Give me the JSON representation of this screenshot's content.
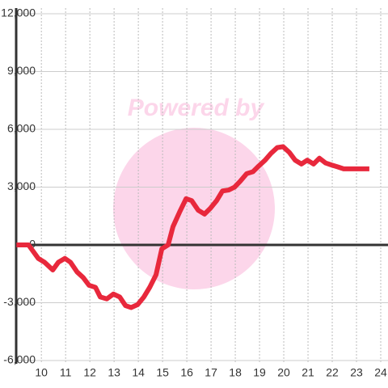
{
  "chart_data": {
    "type": "line",
    "watermark": "Powered by",
    "x": [
      8.97,
      9.47,
      9.87,
      10.13,
      10.47,
      10.7,
      10.97,
      11.2,
      11.47,
      11.73,
      11.97,
      12.23,
      12.43,
      12.7,
      12.97,
      13.23,
      13.47,
      13.7,
      13.97,
      14.23,
      14.47,
      14.73,
      14.97,
      15.23,
      15.43,
      15.7,
      15.97,
      16.2,
      16.47,
      16.73,
      16.97,
      17.23,
      17.47,
      17.73,
      17.97,
      18.2,
      18.47,
      18.73,
      18.97,
      19.23,
      19.47,
      19.73,
      19.97,
      20.23,
      20.47,
      20.73,
      20.97,
      21.23,
      21.47,
      21.73,
      21.97,
      22.23,
      22.47,
      22.73,
      23.53
    ],
    "series": [
      {
        "color": "#e8283c",
        "values": [
          0,
          0,
          -700,
          -900,
          -1300,
          -900,
          -700,
          -900,
          -1400,
          -1700,
          -2100,
          -2200,
          -2700,
          -2800,
          -2550,
          -2700,
          -3150,
          -3250,
          -3100,
          -2700,
          -2200,
          -1550,
          -200,
          0,
          950,
          1700,
          2400,
          2300,
          1800,
          1600,
          1900,
          2300,
          2800,
          2850,
          3000,
          3300,
          3700,
          3800,
          4100,
          4400,
          4750,
          5050,
          5100,
          4800,
          4400,
          4200,
          4400,
          4200,
          4500,
          4250,
          4150,
          4050,
          3950,
          3950,
          3950
        ]
      }
    ],
    "xlim": [
      8.96,
      24.3
    ],
    "xticks": [
      10,
      11,
      12,
      13,
      14,
      15,
      16,
      17,
      18,
      19,
      20,
      21,
      22,
      23,
      24
    ],
    "ylim": [
      -6000,
      12000
    ],
    "yticks": [
      {
        "value": -6000,
        "label": "-6,000"
      },
      {
        "value": -3000,
        "label": "-3,000"
      },
      0,
      {
        "value": 3000,
        "label": "3,000"
      },
      {
        "value": 6000,
        "label": "6,000"
      },
      {
        "value": 9000,
        "label": "9,000"
      },
      {
        "value": 12000,
        "label": "12,000"
      }
    ],
    "baseline": 0,
    "grid": true
  }
}
